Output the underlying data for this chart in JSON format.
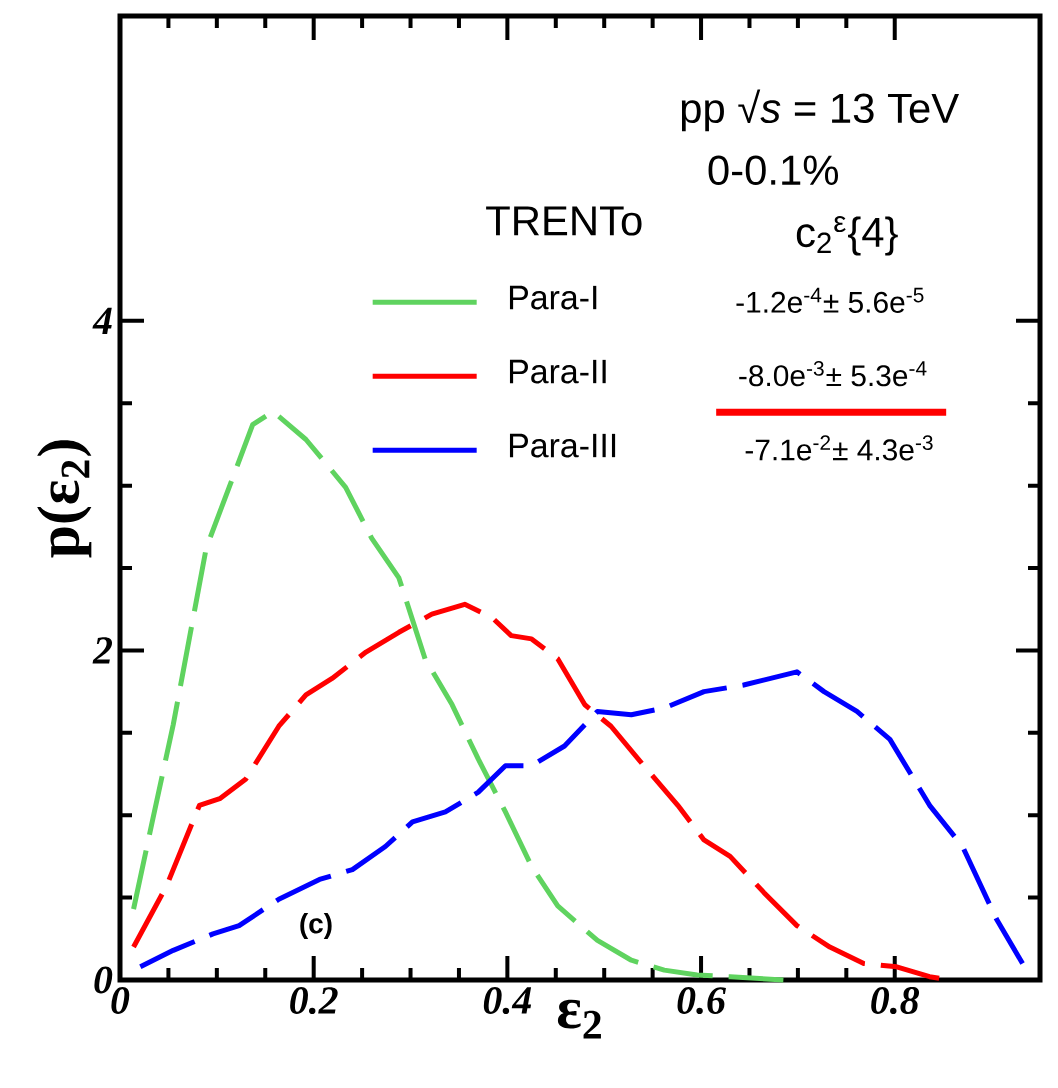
{
  "chart_data": {
    "type": "line",
    "xlabel": "ε$_{2}$",
    "ylabel": "p(ε$_{2}$)",
    "legend_title": "TRENTo",
    "annotations": [
      "pp √*s* = 13 TeV",
      "0-0.1%",
      "c$_{2}$$^{ε}${4}",
      "-1.2e$^{-4}$± 5.6e$^{-5}$",
      "-8.0e$^{-3}$± 5.3e$^{-4}$",
      "-7.1e$^{-2}$± 4.3e$^{-3}$",
      "(c)"
    ],
    "xlim": [
      0,
      0.95
    ],
    "ylim": [
      0,
      5.85
    ],
    "xticks": [
      0,
      0.2,
      0.4,
      0.6,
      0.8
    ],
    "yticks": [
      0,
      2,
      4
    ],
    "legend": "top",
    "line_style": "dashed",
    "marker": "none",
    "grid": false,
    "series": [
      {
        "name": "Para-I",
        "color": "#5fd35f",
        "x": [
          0.014,
          0.034,
          0.055,
          0.089,
          0.137,
          0.158,
          0.192,
          0.233,
          0.26,
          0.288,
          0.315,
          0.343,
          0.37,
          0.398,
          0.425,
          0.452,
          0.493,
          0.528,
          0.562,
          0.596,
          0.63,
          0.685
        ],
        "values": [
          0.43,
          0.98,
          1.55,
          2.62,
          3.37,
          3.45,
          3.28,
          2.99,
          2.68,
          2.44,
          1.95,
          1.67,
          1.34,
          1.02,
          0.69,
          0.45,
          0.24,
          0.12,
          0.06,
          0.03,
          0.02,
          0
        ]
      },
      {
        "name": "Para-II",
        "color": "#ff0000",
        "x": [
          0.014,
          0.048,
          0.082,
          0.103,
          0.13,
          0.164,
          0.192,
          0.219,
          0.254,
          0.288,
          0.322,
          0.356,
          0.384,
          0.404,
          0.425,
          0.452,
          0.48,
          0.507,
          0.541,
          0.576,
          0.603,
          0.63,
          0.665,
          0.699,
          0.733,
          0.768,
          0.802,
          0.836,
          0.857
        ],
        "values": [
          0.2,
          0.57,
          1.06,
          1.1,
          1.22,
          1.54,
          1.73,
          1.83,
          1.99,
          2.11,
          2.22,
          2.28,
          2.2,
          2.09,
          2.07,
          1.95,
          1.67,
          1.54,
          1.3,
          1.06,
          0.85,
          0.75,
          0.53,
          0.33,
          0.2,
          0.1,
          0.08,
          0.02,
          0
        ]
      },
      {
        "name": "Para-III",
        "color": "#0000ff",
        "x": [
          0.021,
          0.055,
          0.096,
          0.123,
          0.164,
          0.206,
          0.24,
          0.274,
          0.302,
          0.336,
          0.37,
          0.398,
          0.425,
          0.459,
          0.493,
          0.528,
          0.562,
          0.603,
          0.644,
          0.699,
          0.727,
          0.761,
          0.795,
          0.836,
          0.87,
          0.905,
          0.932
        ],
        "values": [
          0.08,
          0.18,
          0.28,
          0.33,
          0.49,
          0.61,
          0.67,
          0.81,
          0.96,
          1.02,
          1.14,
          1.3,
          1.3,
          1.42,
          1.63,
          1.61,
          1.65,
          1.75,
          1.79,
          1.87,
          1.75,
          1.63,
          1.46,
          1.06,
          0.81,
          0.37,
          0.1
        ]
      }
    ]
  }
}
